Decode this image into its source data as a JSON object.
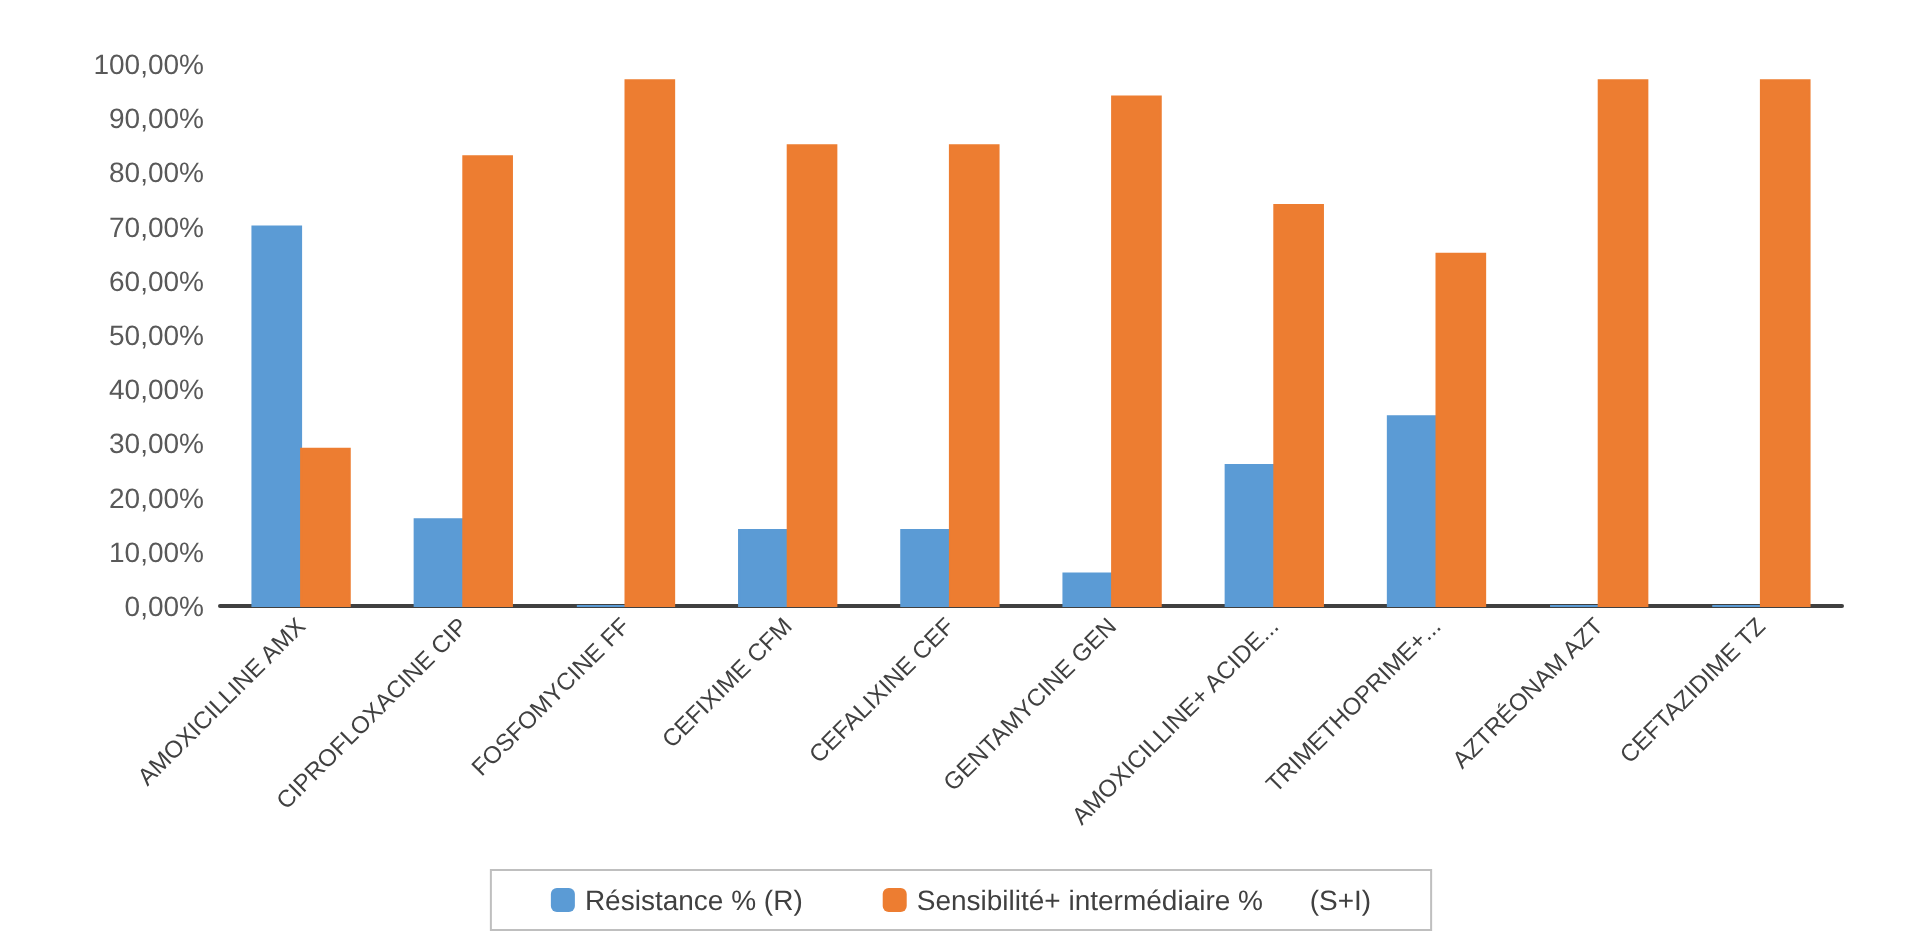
{
  "chart_data": {
    "type": "bar",
    "categories": [
      "AMOXICILLINE AMX",
      "CIPROFLOXACINE CIP",
      "FOSFOMYCINE FF",
      "CEFIXIME CFM",
      "CEFALIXINE CEF",
      "GENTAMYCINE GEN",
      "AMOXICILLINE+ ACIDE...",
      "TRIMETHOPRIME+...",
      "AZTRÉONAM AZT",
      "CEFTAZIDIME TZ"
    ],
    "series": [
      {
        "name": "Résistance % (R)",
        "color": "#5b9bd5",
        "values": [
          70,
          16,
          0,
          14,
          14,
          6,
          26,
          35,
          0,
          0
        ]
      },
      {
        "name": "Sensibilité+ intermédiaire %      (S+I)",
        "color": "#ed7d31",
        "values": [
          29,
          83,
          97,
          85,
          85,
          94,
          74,
          65,
          97,
          97
        ]
      }
    ],
    "ylim": [
      0,
      100
    ],
    "yticks": [
      {
        "value": 0,
        "label": "0,00%"
      },
      {
        "value": 10,
        "label": "10,00%"
      },
      {
        "value": 20,
        "label": "20,00%"
      },
      {
        "value": 30,
        "label": "30,00%"
      },
      {
        "value": 40,
        "label": "40,00%"
      },
      {
        "value": 50,
        "label": "50,00%"
      },
      {
        "value": 60,
        "label": "60,00%"
      },
      {
        "value": 70,
        "label": "70,00%"
      },
      {
        "value": 80,
        "label": "80,00%"
      },
      {
        "value": 90,
        "label": "90,00%"
      },
      {
        "value": 100,
        "label": "100,00%"
      }
    ],
    "grid": false,
    "legend": "bottom"
  }
}
